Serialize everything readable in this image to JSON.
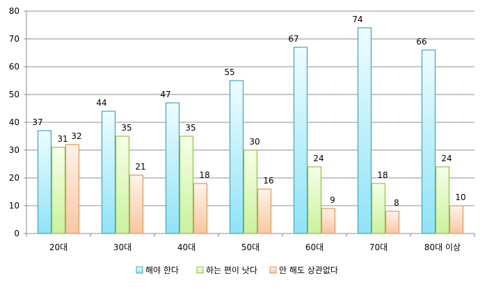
{
  "chart_data": {
    "type": "bar",
    "title": "",
    "xlabel": "",
    "ylabel": "",
    "ylim": [
      0,
      80
    ],
    "yticks": [
      0,
      10,
      20,
      30,
      40,
      50,
      60,
      70,
      80
    ],
    "categories": [
      "20대",
      "30대",
      "40대",
      "50대",
      "60대",
      "70대",
      "80대 이상"
    ],
    "series": [
      {
        "name": "해야 한다",
        "values": [
          37,
          44,
          47,
          55,
          67,
          74,
          66
        ],
        "fill_top": "#eefcff",
        "fill_bottom": "#8fe3f5",
        "stroke": "#3da3c0"
      },
      {
        "name": "하는 편이 낫다",
        "values": [
          31,
          35,
          35,
          30,
          24,
          18,
          24
        ],
        "fill_top": "#f6ffe8",
        "fill_bottom": "#c9f29a",
        "stroke": "#8fbf4a"
      },
      {
        "name": "안 해도 상관없다",
        "values": [
          32,
          21,
          18,
          16,
          9,
          8,
          10
        ],
        "fill_top": "#fff3ea",
        "fill_bottom": "#f7c7a0",
        "stroke": "#e2945a"
      }
    ],
    "grid": true,
    "legend": "bottom-center"
  }
}
